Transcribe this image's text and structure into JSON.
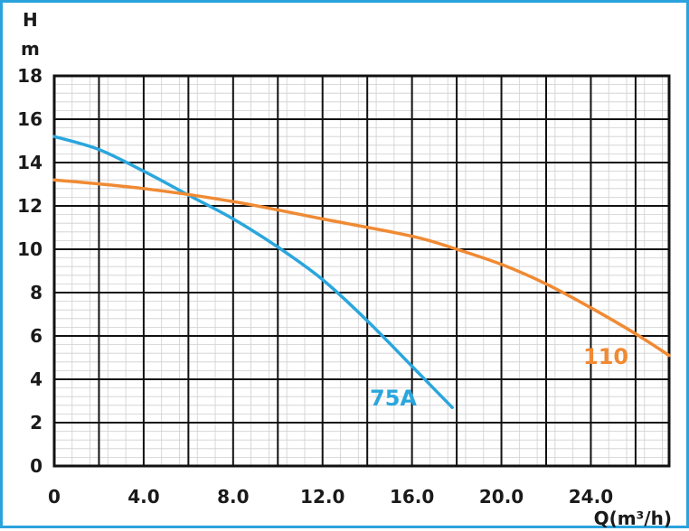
{
  "chart_data": {
    "type": "line",
    "ylabel_line1": "H",
    "ylabel_line2": "m",
    "xlabel": "Q(m³/h)",
    "xlim": [
      0,
      27.5
    ],
    "ylim": [
      0,
      18
    ],
    "x_ticks": [
      0,
      4,
      8,
      12,
      16,
      20,
      24
    ],
    "x_tick_labels": [
      "0",
      "4.0",
      "8.0",
      "12.0",
      "16.0",
      "20.0",
      "24.0"
    ],
    "y_ticks": [
      0,
      2,
      4,
      6,
      8,
      10,
      12,
      14,
      16,
      18
    ],
    "y_tick_labels": [
      "0",
      "2",
      "4",
      "6",
      "8",
      "10",
      "12",
      "14",
      "16",
      "18"
    ],
    "grid": true,
    "series": [
      {
        "name": "75A",
        "color": "#2aa6dd",
        "points": [
          [
            0,
            15.2
          ],
          [
            2,
            14.6
          ],
          [
            4,
            13.6
          ],
          [
            6,
            12.5
          ],
          [
            8,
            11.4
          ],
          [
            10,
            10.1
          ],
          [
            12,
            8.6
          ],
          [
            14,
            6.7
          ],
          [
            16,
            4.6
          ],
          [
            17.8,
            2.7
          ]
        ]
      },
      {
        "name": "110",
        "color": "#f08a33",
        "points": [
          [
            0,
            13.2
          ],
          [
            4,
            12.8
          ],
          [
            8,
            12.2
          ],
          [
            12,
            11.4
          ],
          [
            16,
            10.6
          ],
          [
            18,
            10.0
          ],
          [
            20,
            9.3
          ],
          [
            22,
            8.4
          ],
          [
            24,
            7.3
          ],
          [
            26,
            6.1
          ],
          [
            27.5,
            5.1
          ]
        ]
      }
    ]
  }
}
